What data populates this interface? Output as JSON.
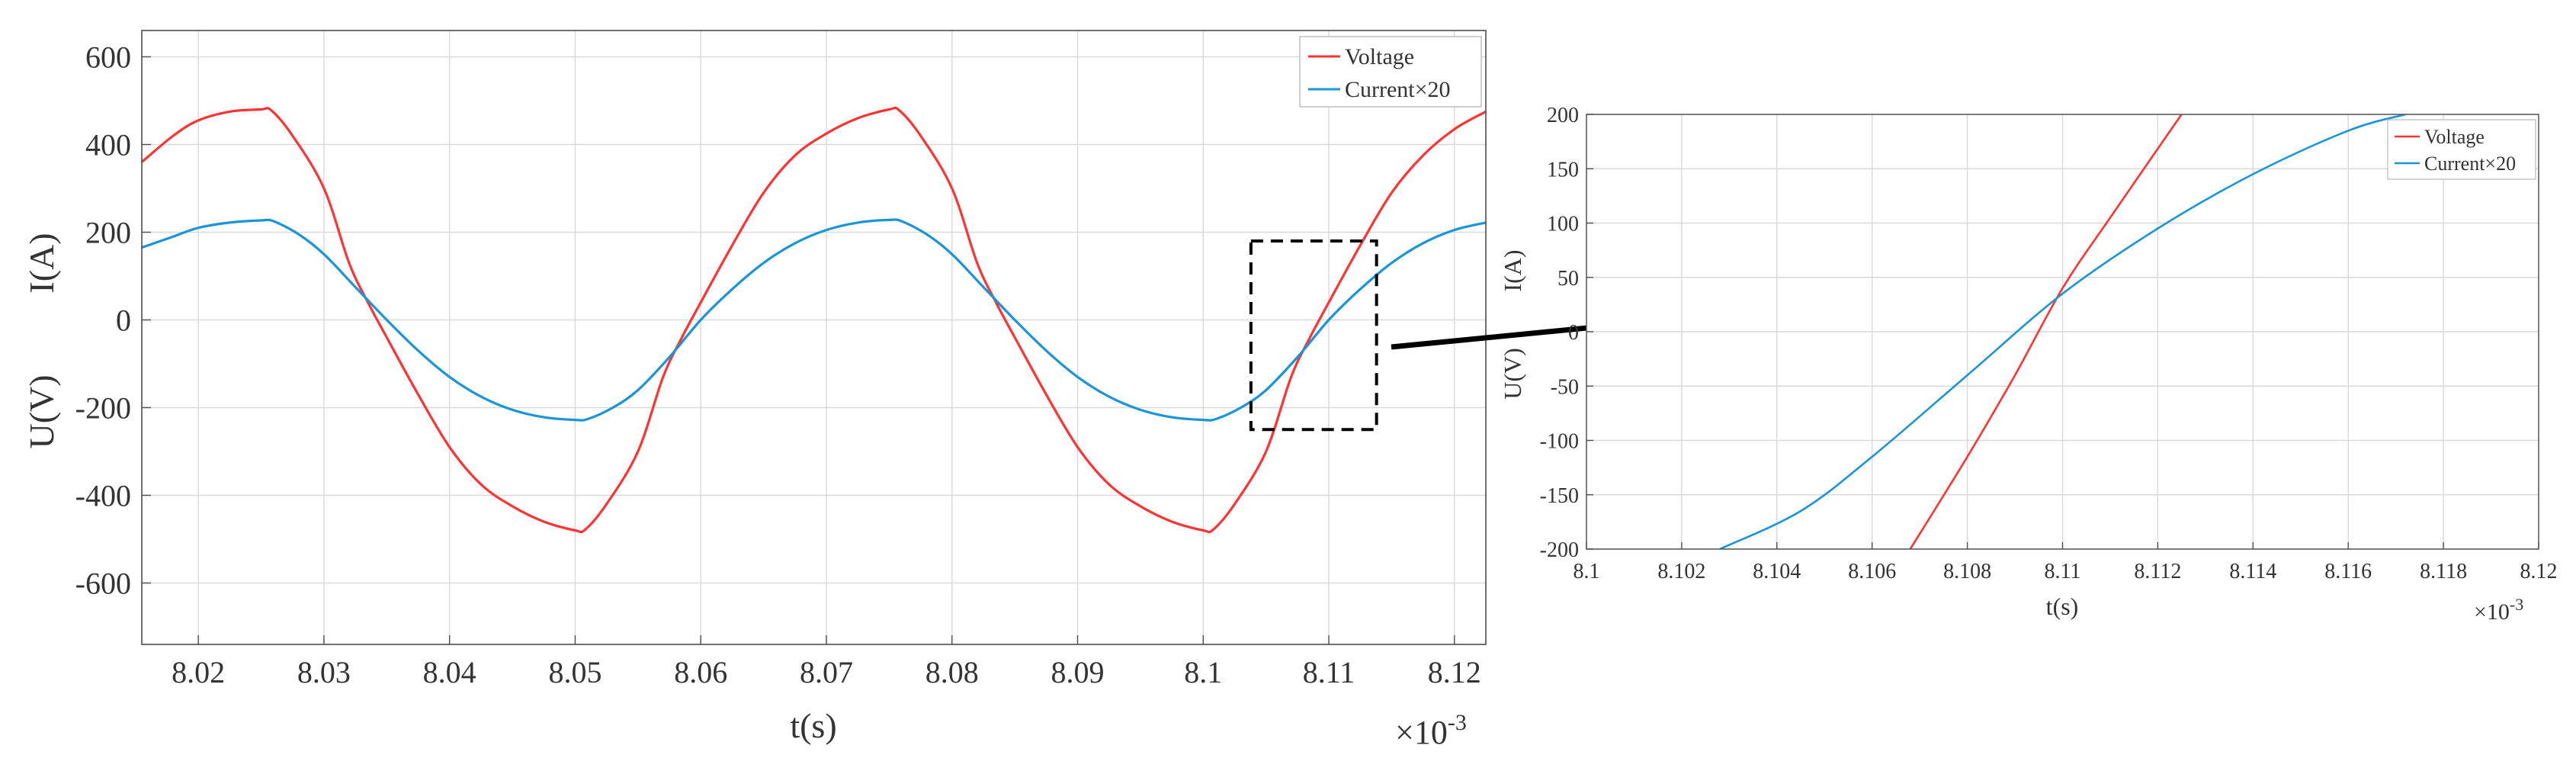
{
  "colors": {
    "voltage": "#ff3333",
    "current": "#1b95d6",
    "grid": "#d9d9d9",
    "axis": "#4d4d4d"
  },
  "chart_data": [
    {
      "type": "line",
      "title": "",
      "xlabel": "t(s)",
      "ylabel_current": "I(A)",
      "ylabel_voltage": "U(V)",
      "x_exponent_base": "×10",
      "x_exponent_power": "-3",
      "xlim": [
        8.0155,
        8.1225
      ],
      "ylim": [
        -740,
        660
      ],
      "grid": true,
      "legend_position": "top-right",
      "x_ticks": [
        8.02,
        8.03,
        8.04,
        8.05,
        8.06,
        8.07,
        8.08,
        8.09,
        8.1,
        8.11,
        8.12
      ],
      "x_tick_labels": [
        "8.02",
        "8.03",
        "8.04",
        "8.05",
        "8.06",
        "8.07",
        "8.08",
        "8.09",
        "8.1",
        "8.11",
        "8.12"
      ],
      "y_ticks": [
        -600,
        -400,
        -200,
        0,
        200,
        400,
        600
      ],
      "y_tick_labels": [
        "-600",
        "-400",
        "-200",
        "0",
        "200",
        "400",
        "600"
      ],
      "zoom_box": {
        "x": [
          8.1038,
          8.1138
        ],
        "y": [
          -250,
          180
        ]
      },
      "series": [
        {
          "name": "Voltage",
          "x": [
            8.0155,
            8.018,
            8.02,
            8.0225,
            8.025,
            8.0258,
            8.0275,
            8.03,
            8.032,
            8.0335,
            8.035,
            8.0375,
            8.04,
            8.0425,
            8.045,
            8.0475,
            8.05,
            8.0508,
            8.0525,
            8.055,
            8.057,
            8.0585,
            8.06,
            8.0625,
            8.065,
            8.0675,
            8.07,
            8.0725,
            8.075,
            8.0758,
            8.0775,
            8.08,
            8.082,
            8.0835,
            8.085,
            8.0875,
            8.09,
            8.0925,
            8.095,
            8.0975,
            8.1,
            8.1008,
            8.1025,
            8.105,
            8.107,
            8.1085,
            8.11,
            8.1125,
            8.115,
            8.1175,
            8.12,
            8.1225
          ],
          "values": [
            360,
            420,
            455,
            475,
            480,
            478,
            420,
            300,
            130,
            40,
            -40,
            -170,
            -290,
            -375,
            -425,
            -460,
            -480,
            -478,
            -420,
            -300,
            -130,
            -40,
            40,
            170,
            290,
            375,
            425,
            460,
            480,
            478,
            420,
            300,
            130,
            40,
            -40,
            -170,
            -290,
            -375,
            -425,
            -460,
            -480,
            -478,
            -420,
            -300,
            -130,
            -40,
            40,
            170,
            290,
            375,
            435,
            475
          ]
        },
        {
          "name": "Current×20",
          "x": [
            8.0155,
            8.018,
            8.02,
            8.0225,
            8.025,
            8.026,
            8.028,
            8.03,
            8.0325,
            8.035,
            8.0375,
            8.04,
            8.0425,
            8.045,
            8.0475,
            8.05,
            8.051,
            8.053,
            8.055,
            8.0575,
            8.06,
            8.0625,
            8.065,
            8.0675,
            8.07,
            8.0725,
            8.075,
            8.076,
            8.078,
            8.08,
            8.0825,
            8.085,
            8.0875,
            8.09,
            8.0925,
            8.095,
            8.0975,
            8.1,
            8.101,
            8.103,
            8.105,
            8.1075,
            8.11,
            8.1125,
            8.115,
            8.1175,
            8.12,
            8.1225
          ],
          "values": [
            165,
            190,
            210,
            222,
            227,
            225,
            195,
            150,
            75,
            0,
            -70,
            -130,
            -175,
            -205,
            -222,
            -228,
            -226,
            -200,
            -160,
            -85,
            0,
            70,
            130,
            175,
            205,
            222,
            228,
            225,
            195,
            150,
            75,
            0,
            -70,
            -130,
            -175,
            -205,
            -222,
            -228,
            -226,
            -200,
            -160,
            -85,
            0,
            70,
            130,
            175,
            205,
            222
          ]
        }
      ]
    },
    {
      "type": "line",
      "title": "",
      "xlabel": "t(s)",
      "ylabel_current": "I(A)",
      "ylabel_voltage": "U(V)",
      "x_exponent_base": "×10",
      "x_exponent_power": "-3",
      "xlim": [
        8.1,
        8.12
      ],
      "ylim": [
        -200,
        200
      ],
      "grid": true,
      "legend_position": "top-right",
      "x_ticks": [
        8.1,
        8.102,
        8.104,
        8.106,
        8.108,
        8.11,
        8.112,
        8.114,
        8.116,
        8.118,
        8.12
      ],
      "x_tick_labels": [
        "8.1",
        "8.102",
        "8.104",
        "8.106",
        "8.108",
        "8.11",
        "8.112",
        "8.114",
        "8.116",
        "8.118",
        "8.12"
      ],
      "y_ticks": [
        -200,
        -150,
        -100,
        -50,
        0,
        50,
        100,
        150,
        200
      ],
      "y_tick_labels": [
        "-200",
        "-150",
        "-100",
        "-50",
        "0",
        "50",
        "100",
        "150",
        "200"
      ],
      "series": [
        {
          "name": "Voltage",
          "x": [
            8.1068,
            8.108,
            8.109,
            8.11,
            8.111,
            8.1125
          ],
          "values": [
            -200,
            -115,
            -40,
            40,
            105,
            200
          ]
        },
        {
          "name": "Current×20",
          "x": [
            8.1028,
            8.1045,
            8.106,
            8.108,
            8.11,
            8.112,
            8.114,
            8.116,
            8.1172
          ],
          "values": [
            -200,
            -165,
            -115,
            -40,
            35,
            95,
            145,
            185,
            200
          ]
        }
      ]
    }
  ]
}
